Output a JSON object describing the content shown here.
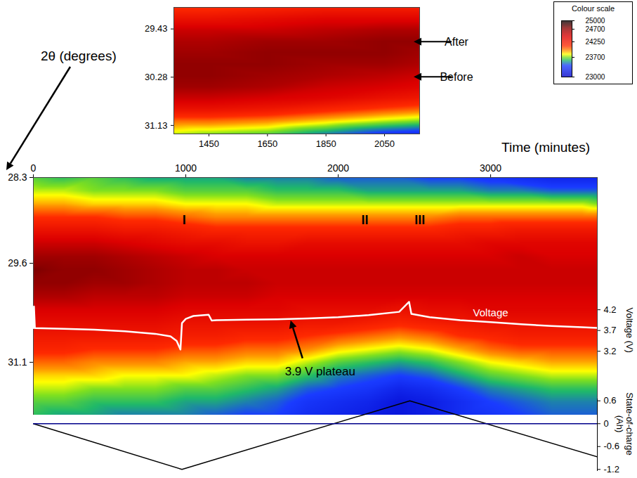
{
  "chart_data": [
    {
      "type": "heatmap",
      "x_label": "Time (minutes)",
      "y_label": "2θ (degrees)",
      "y2_label": "Voltage (V)",
      "xlim": [
        0,
        3700
      ],
      "xticks": [
        0,
        1000,
        2000,
        3000
      ],
      "ylim": [
        31.9,
        28.3
      ],
      "yticks": [
        28.3,
        29.6,
        31.1
      ],
      "y2lim": [
        1.66,
        7.39
      ],
      "y2ticks": [
        3.2,
        3.7,
        4.2
      ],
      "x": [
        0,
        200,
        400,
        600,
        800,
        1000,
        1200,
        1400,
        1600,
        1800,
        2000,
        2200,
        2400,
        2600,
        2800,
        3000,
        3200,
        3400,
        3600,
        3700
      ],
      "y": [
        28.3,
        28.5,
        28.7,
        28.9,
        29.1,
        29.3,
        29.5,
        29.7,
        29.9,
        30.1,
        30.3,
        30.5,
        30.7,
        30.9,
        31.1,
        31.3,
        31.5,
        31.7,
        31.9
      ],
      "cells": [
        [
          23650,
          23750,
          23900,
          24100,
          24300,
          24500,
          24650,
          24750,
          24700,
          24600,
          24450,
          24350,
          24250,
          24150,
          24000,
          23850,
          23750,
          23650,
          23600
        ],
        [
          23600,
          23750,
          23900,
          24100,
          24300,
          24500,
          24650,
          24700,
          24700,
          24600,
          24450,
          24350,
          24250,
          24150,
          24000,
          23850,
          23750,
          23650,
          23550
        ],
        [
          23650,
          23700,
          23850,
          24100,
          24300,
          24500,
          24650,
          24700,
          24650,
          24550,
          24450,
          24350,
          24250,
          24100,
          23950,
          23850,
          23700,
          23600,
          23550
        ],
        [
          23600,
          23700,
          23850,
          24050,
          24250,
          24450,
          24600,
          24650,
          24650,
          24550,
          24450,
          24350,
          24250,
          24100,
          23950,
          23800,
          23700,
          23600,
          23500
        ],
        [
          23550,
          23700,
          23850,
          24050,
          24250,
          24400,
          24550,
          24600,
          24600,
          24550,
          24450,
          24350,
          24250,
          24100,
          23950,
          23800,
          23700,
          23600,
          23500
        ],
        [
          23550,
          23650,
          23800,
          24000,
          24200,
          24350,
          24500,
          24550,
          24550,
          24500,
          24400,
          24300,
          24200,
          24050,
          23900,
          23800,
          23650,
          23550,
          23500
        ],
        [
          23550,
          23650,
          23800,
          23950,
          24150,
          24350,
          24450,
          24550,
          24550,
          24500,
          24400,
          24300,
          24200,
          24050,
          23900,
          23750,
          23650,
          23550,
          23450
        ],
        [
          23500,
          23650,
          23800,
          23950,
          24150,
          24300,
          24450,
          24500,
          24550,
          24500,
          24400,
          24300,
          24150,
          24000,
          23850,
          23700,
          23600,
          23500,
          23400
        ],
        [
          23500,
          23600,
          23750,
          23950,
          24150,
          24300,
          24450,
          24500,
          24500,
          24450,
          24400,
          24300,
          24150,
          24000,
          23850,
          23700,
          23550,
          23450,
          23400
        ],
        [
          23500,
          23600,
          23750,
          23950,
          24150,
          24350,
          24450,
          24500,
          24500,
          24450,
          24350,
          24250,
          24100,
          23950,
          23750,
          23600,
          23450,
          23350,
          23300
        ],
        [
          23450,
          23600,
          23750,
          23950,
          24150,
          24350,
          24450,
          24500,
          24500,
          24450,
          24350,
          24250,
          24050,
          23850,
          23650,
          23500,
          23400,
          23300,
          23250
        ],
        [
          23450,
          23550,
          23750,
          23950,
          24150,
          24350,
          24450,
          24500,
          24500,
          24450,
          24350,
          24200,
          24000,
          23800,
          23600,
          23450,
          23350,
          23250,
          23200
        ],
        [
          23450,
          23550,
          23750,
          23950,
          24150,
          24350,
          24450,
          24500,
          24500,
          24450,
          24300,
          24150,
          23950,
          23750,
          23550,
          23400,
          23250,
          23150,
          23150
        ],
        [
          23400,
          23550,
          23750,
          23950,
          24150,
          24350,
          24450,
          24500,
          24500,
          24450,
          24350,
          24200,
          24000,
          23800,
          23600,
          23450,
          23300,
          23200,
          23200
        ],
        [
          23400,
          23550,
          23750,
          24000,
          24200,
          24350,
          24450,
          24500,
          24500,
          24450,
          24350,
          24250,
          24100,
          23900,
          23700,
          23550,
          23400,
          23300,
          23300
        ],
        [
          23350,
          23500,
          23750,
          24000,
          24200,
          24400,
          24450,
          24500,
          24500,
          24450,
          24400,
          24300,
          24150,
          24000,
          23800,
          23650,
          23500,
          23400,
          23350
        ],
        [
          23300,
          23500,
          23750,
          24000,
          24250,
          24400,
          24500,
          24500,
          24500,
          24450,
          24400,
          24300,
          24200,
          24050,
          23850,
          23700,
          23550,
          23450,
          23400
        ],
        [
          23250,
          23450,
          23750,
          24000,
          24250,
          24400,
          24450,
          24500,
          24500,
          24450,
          24400,
          24300,
          24200,
          24050,
          23900,
          23750,
          23600,
          23500,
          23450
        ],
        [
          23250,
          23450,
          23750,
          24000,
          24250,
          24400,
          24450,
          24500,
          24500,
          24450,
          24400,
          24300,
          24200,
          24050,
          23900,
          23750,
          23600,
          23500,
          23450
        ],
        [
          23250,
          23450,
          23700,
          24000,
          24250,
          24400,
          24450,
          24500,
          24500,
          24450,
          24400,
          24300,
          24200,
          24050,
          23900,
          23750,
          23600,
          23500,
          23450
        ]
      ],
      "colorbar": {
        "title": "Colour scale",
        "range": [
          23000,
          25000
        ],
        "ticks": [
          23000,
          23700,
          24250,
          24700,
          25000
        ]
      },
      "series": [
        {
          "name": "Voltage",
          "type": "line",
          "axis": "y2",
          "color": "#ffffff",
          "x": [
            0,
            4,
            10,
            200,
            400,
            600,
            800,
            900,
            940,
            965,
            975,
            1000,
            1050,
            1150,
            1170,
            1200,
            1400,
            1600,
            1800,
            2000,
            2200,
            2400,
            2465,
            2480,
            2600,
            2800,
            3000,
            3200,
            3400,
            3600,
            3700
          ],
          "values": [
            3.76,
            4.28,
            3.76,
            3.74,
            3.72,
            3.68,
            3.62,
            3.56,
            3.45,
            3.24,
            3.88,
            3.98,
            4.05,
            4.08,
            3.94,
            3.95,
            3.96,
            3.97,
            3.99,
            4.02,
            4.07,
            4.15,
            4.39,
            4.1,
            4.02,
            3.95,
            3.9,
            3.85,
            3.81,
            3.78,
            3.76
          ]
        }
      ],
      "annotations": [
        {
          "text": "I",
          "x": 990,
          "y": 28.95
        },
        {
          "text": "II",
          "x": 2175,
          "y": 28.95
        },
        {
          "text": "III",
          "x": 2535,
          "y": 28.95
        },
        {
          "text": "3.9 V plateau",
          "x": 1690,
          "y2": 3.97
        }
      ]
    },
    {
      "type": "heatmap",
      "xlim": [
        1330,
        2170
      ],
      "xticks": [
        1450,
        1650,
        1850,
        2050
      ],
      "ylim": [
        31.28,
        29.05
      ],
      "yticks": [
        29.43,
        30.28,
        31.13
      ],
      "x": [
        1330,
        1450,
        1650,
        1850,
        2050,
        2170
      ],
      "y": [
        29.05,
        29.25,
        29.45,
        29.65,
        29.85,
        30.05,
        30.25,
        30.45,
        30.65,
        30.85,
        31.05,
        31.28
      ],
      "cells": [
        [
          24100,
          24300,
          24500,
          24600,
          24650,
          24700,
          24700,
          24650,
          24500,
          24300,
          24000,
          23750
        ],
        [
          24100,
          24300,
          24500,
          24600,
          24650,
          24700,
          24700,
          24650,
          24500,
          24300,
          24000,
          23700
        ],
        [
          24150,
          24350,
          24500,
          24650,
          24700,
          24700,
          24650,
          24600,
          24450,
          24250,
          23950,
          23650
        ],
        [
          24200,
          24400,
          24550,
          24650,
          24700,
          24650,
          24600,
          24500,
          24400,
          24150,
          23850,
          23500
        ],
        [
          24200,
          24400,
          24600,
          24700,
          24700,
          24650,
          24550,
          24450,
          24300,
          24050,
          23750,
          23350
        ],
        [
          24200,
          24400,
          24600,
          24700,
          24650,
          24600,
          24500,
          24400,
          24250,
          24000,
          23700,
          23300
        ]
      ],
      "annotations": [
        {
          "text": "After",
          "y": 29.66
        },
        {
          "text": "Before",
          "y": 30.28
        }
      ]
    },
    {
      "type": "line",
      "y_label": "State-of-charge (Ah)",
      "xlim": [
        0,
        3700
      ],
      "ylim": [
        -1.25,
        0.65
      ],
      "yticks": [
        0.6,
        0,
        -0.6,
        -1.2
      ],
      "tick_labels": "y",
      "series": [
        {
          "color": "#000000",
          "x": [
            0,
            975,
            2470,
            3700
          ],
          "values": [
            0,
            -1.2,
            0.6,
            -0.87
          ]
        },
        {
          "color": "#00008b",
          "x": [
            0,
            3700
          ],
          "values": [
            0,
            0
          ]
        }
      ]
    }
  ]
}
